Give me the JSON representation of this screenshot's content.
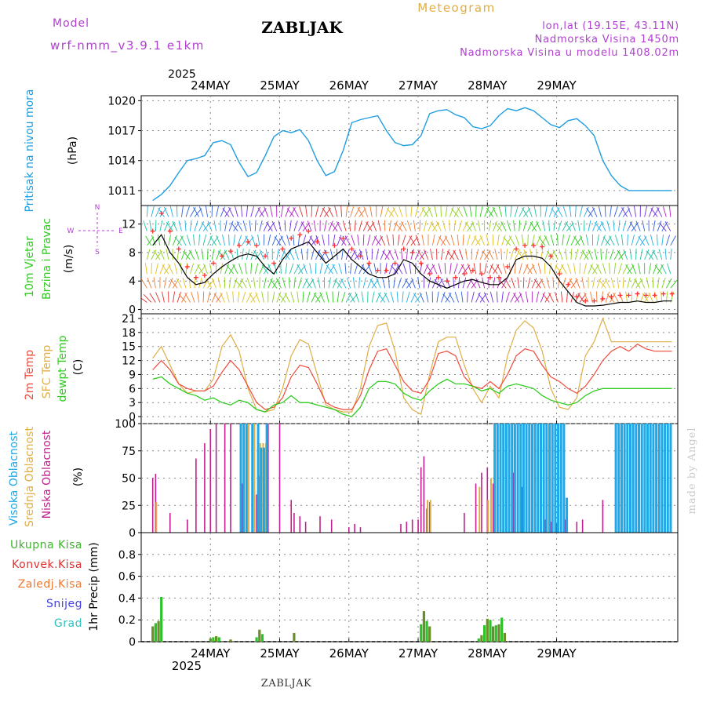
{
  "header": {
    "model_label": "Model",
    "model_name": "wrf-nmm_v3.9.1 e1km",
    "station": "ZABLJAK",
    "product": "Meteogram",
    "coords": "lon,lat (19.15E, 43.11N)",
    "elevation": "Nadmorska Visina 1450m",
    "model_elevation": "Nadmorska Visina u modelu 1408.02m",
    "footer_station": "ZABLJAK",
    "credit": "made by Angel"
  },
  "colors": {
    "pressure": "#1e9ee0",
    "wind_speed": "#000000",
    "gust": "#ff3030",
    "temp2m": "#f04a3a",
    "sfc_temp": "#dfae47",
    "dewpoint": "#2ecc1e",
    "cloud_high": "#1ea8e8",
    "cloud_mid": "#dfae47",
    "cloud_low": "#c0208e",
    "precip_total": "#3cb52a",
    "precip_conv": "#e03030",
    "precip_frozen": "#f07830",
    "snow": "#4040e0",
    "hail": "#30c0c0",
    "grid": "#888888",
    "model_text": "#b040d0"
  },
  "chart_data": [
    {
      "type": "line",
      "panel": "pressure",
      "ylabel_left": "Pritisak na nivou mora",
      "ylabel_unit": "(hPa)",
      "ylim": [
        1009.5,
        1020.5
      ],
      "yticks": [
        1011,
        1014,
        1017,
        1020
      ],
      "x_day_ticks": [
        "24MAY",
        "25MAY",
        "26MAY",
        "27MAY",
        "28MAY",
        "29MAY"
      ],
      "year_label": "2025",
      "x_hours": [
        0,
        3,
        6,
        9,
        12,
        15,
        18,
        21,
        24,
        27,
        30,
        33,
        36,
        39,
        42,
        45,
        48,
        51,
        54,
        57,
        60,
        63,
        66,
        69,
        72,
        75,
        78,
        81,
        84,
        87,
        90,
        93,
        96,
        99,
        102,
        105,
        108,
        111,
        114,
        117,
        120,
        123,
        126,
        129,
        132,
        135,
        138,
        141,
        144,
        147,
        150,
        153,
        156,
        159,
        162,
        165,
        168,
        171,
        174,
        177,
        180
      ],
      "series": [
        {
          "values": [
            1010.0,
            1010.6,
            1011.5,
            1012.8,
            1014.0,
            1014.2,
            1014.5,
            1015.8,
            1016.0,
            1015.6,
            1013.8,
            1012.4,
            1012.8,
            1014.5,
            1016.4,
            1017.0,
            1016.8,
            1017.1,
            1016.0,
            1014.0,
            1012.5,
            1012.9,
            1015.0,
            1017.8,
            1018.1,
            1018.3,
            1018.5,
            1017.0,
            1015.8,
            1015.5,
            1015.6,
            1016.5,
            1018.7,
            1019.0,
            1019.1,
            1018.6,
            1018.3,
            1017.4,
            1017.2,
            1017.5,
            1018.5,
            1019.2,
            1019.0,
            1019.3,
            1019.0,
            1018.3,
            1017.6,
            1017.3,
            1018.0,
            1018.2,
            1017.5,
            1016.5,
            1014.0,
            1012.5,
            1011.5,
            1011.0,
            1011.0,
            1011.0,
            1011.0,
            1011.0,
            1011.0
          ]
        }
      ]
    },
    {
      "type": "line",
      "panel": "wind",
      "ylabel_left": "10m Vjetar",
      "ylabel_left2": "Brzina i Pravac",
      "ylabel_unit": "(m/s)",
      "compass": {
        "n": "N",
        "e": "E",
        "w": "W",
        "s": "S"
      },
      "ylim": [
        -0.6,
        14.6
      ],
      "yticks": [
        0,
        4,
        8,
        12
      ],
      "series": [
        {
          "name": "wind_speed",
          "values": [
            9.0,
            10.5,
            8.0,
            6.5,
            4.5,
            3.5,
            3.8,
            5.0,
            6.0,
            6.8,
            7.5,
            7.8,
            7.5,
            6.0,
            5.0,
            7.0,
            8.5,
            9.0,
            9.5,
            8.0,
            6.5,
            7.5,
            8.5,
            7.0,
            6.0,
            5.0,
            4.5,
            4.5,
            5.0,
            7.0,
            6.5,
            5.0,
            4.0,
            3.5,
            3.0,
            3.5,
            4.0,
            4.2,
            3.8,
            3.5,
            3.5,
            4.5,
            7.0,
            7.5,
            7.5,
            7.2,
            6.0,
            4.0,
            2.5,
            1.0,
            0.5,
            0.5,
            0.6,
            0.8,
            1.0,
            1.0,
            1.2,
            1.0,
            1.0,
            1.2,
            1.2
          ]
        },
        {
          "name": "gusts",
          "values": [
            11.0,
            13.5,
            11.0,
            8.5,
            6.0,
            4.5,
            4.8,
            6.5,
            7.5,
            8.2,
            9.0,
            9.5,
            9.0,
            7.5,
            6.5,
            8.5,
            10.0,
            10.5,
            11.0,
            9.5,
            8.0,
            9.0,
            10.0,
            8.5,
            7.5,
            6.5,
            5.5,
            5.5,
            6.5,
            8.5,
            8.0,
            6.5,
            5.0,
            4.5,
            4.0,
            4.5,
            5.0,
            5.5,
            5.0,
            4.5,
            4.5,
            6.0,
            8.5,
            9.0,
            9.0,
            8.8,
            7.5,
            5.0,
            3.5,
            1.8,
            1.2,
            1.2,
            1.5,
            1.8,
            2.0,
            2.0,
            2.2,
            2.0,
            2.0,
            2.2,
            2.2
          ]
        }
      ]
    },
    {
      "type": "line",
      "panel": "temperature",
      "ylabel_left": "2m Temp",
      "ylabel_left2": "SFC Temp",
      "ylabel_left3": "dewpt Temp",
      "ylabel_unit": "(C)",
      "ylim": [
        -1.5,
        22
      ],
      "yticks": [
        0,
        3,
        6,
        9,
        12,
        15,
        18,
        21
      ],
      "series": [
        {
          "name": "2m Temp",
          "values": [
            10.0,
            12.0,
            10.0,
            7.0,
            6.0,
            5.5,
            5.5,
            6.5,
            9.5,
            12.0,
            10.0,
            6.5,
            3.0,
            1.5,
            2.0,
            4.0,
            8.5,
            11.0,
            10.5,
            7.0,
            3.0,
            2.0,
            1.5,
            1.5,
            4.5,
            10.0,
            14.0,
            14.5,
            11.0,
            7.5,
            5.5,
            5.0,
            8.0,
            13.5,
            14.0,
            13.0,
            8.5,
            6.5,
            6.0,
            7.5,
            6.0,
            9.0,
            13.0,
            14.5,
            14.0,
            11.0,
            8.5,
            7.5,
            6.0,
            5.0,
            6.5,
            9.0,
            12.0,
            14.0,
            15.0,
            14.0,
            15.5,
            14.5,
            14.0,
            14.0,
            14.0
          ]
        },
        {
          "name": "SFC Temp",
          "values": [
            12.5,
            15.0,
            11.0,
            7.0,
            5.0,
            5.5,
            5.5,
            8.0,
            15.0,
            17.5,
            14.0,
            6.0,
            1.5,
            1.0,
            1.5,
            6.0,
            13.0,
            16.5,
            15.5,
            9.0,
            2.5,
            1.5,
            1.0,
            1.0,
            6.0,
            15.0,
            19.5,
            20.0,
            14.0,
            4.0,
            1.5,
            0.5,
            9.0,
            16.0,
            17.0,
            17.0,
            11.0,
            6.0,
            3.0,
            6.5,
            4.0,
            13.0,
            18.5,
            20.5,
            19.0,
            14.0,
            6.0,
            2.0,
            1.5,
            4.0,
            13.0,
            16.0,
            21.0,
            16.0,
            16.0,
            16.0,
            16.0,
            16.0,
            16.0,
            16.0,
            16.0
          ]
        },
        {
          "name": "dewpt Temp",
          "values": [
            8.0,
            8.5,
            7.0,
            6.0,
            5.0,
            4.5,
            3.5,
            4.0,
            3.0,
            2.5,
            3.5,
            3.0,
            1.5,
            1.0,
            2.5,
            3.0,
            4.5,
            3.0,
            3.0,
            2.5,
            2.0,
            1.5,
            0.5,
            0.0,
            2.0,
            6.0,
            7.5,
            7.5,
            7.0,
            5.0,
            4.0,
            3.5,
            5.5,
            7.0,
            8.0,
            7.0,
            7.0,
            6.5,
            5.5,
            6.0,
            5.0,
            6.5,
            7.0,
            6.5,
            6.0,
            4.5,
            3.5,
            3.0,
            2.5,
            3.0,
            4.5,
            5.5,
            6.0,
            6.0,
            6.0,
            6.0,
            6.0,
            6.0,
            6.0,
            6.0,
            6.0
          ]
        }
      ]
    },
    {
      "type": "bar",
      "panel": "clouds",
      "ylabel_left": "Visoka Oblacnost",
      "ylabel_left2": "Srednja Oblacnost",
      "ylabel_left3": "Niska Oblacnost",
      "ylabel_unit": "(%)",
      "ylim": [
        0,
        100
      ],
      "yticks": [
        0,
        25,
        50,
        75,
        100
      ],
      "series": [
        {
          "name": "Niska Oblacnost",
          "hours": [
            0,
            1,
            6,
            12,
            15,
            18,
            20,
            22,
            25,
            27,
            31,
            36,
            37,
            40,
            44,
            48,
            49,
            51,
            53,
            58,
            62,
            68,
            70,
            72,
            86,
            88,
            90,
            92,
            93,
            94,
            95,
            96,
            108,
            112,
            114,
            116,
            118,
            125,
            128,
            136,
            138,
            140,
            143,
            147,
            149,
            156
          ],
          "values": [
            50,
            54,
            18,
            12,
            68,
            82,
            95,
            100,
            100,
            100,
            45,
            35,
            52,
            100,
            100,
            30,
            18,
            15,
            10,
            15,
            12,
            5,
            8,
            5,
            8,
            10,
            12,
            12,
            60,
            70,
            22,
            28,
            18,
            45,
            55,
            60,
            45,
            55,
            42,
            12,
            10,
            8,
            12,
            10,
            12,
            30
          ]
        },
        {
          "name": "Srednja Oblacnost",
          "hours": [
            1,
            33,
            35,
            37,
            38,
            39,
            95,
            96,
            113,
            116,
            117
          ],
          "values": [
            28,
            100,
            100,
            82,
            82,
            82,
            30,
            30,
            42,
            30,
            50
          ]
        },
        {
          "name": "Visoka Oblacnost",
          "hours": [
            30,
            31,
            32,
            34,
            36,
            37,
            38,
            39,
            118,
            119,
            120,
            121,
            122,
            123,
            124,
            125,
            126,
            127,
            128,
            129,
            130,
            131,
            132,
            133,
            134,
            135,
            136,
            137,
            138,
            139,
            140,
            141,
            142,
            143,
            160,
            161,
            162,
            163,
            164,
            165,
            166,
            167,
            168,
            169,
            170,
            171,
            172,
            173,
            174,
            175,
            176,
            177,
            178,
            179
          ],
          "values": [
            100,
            100,
            100,
            100,
            100,
            78,
            78,
            100,
            100,
            100,
            100,
            100,
            100,
            100,
            100,
            100,
            100,
            100,
            100,
            100,
            100,
            100,
            100,
            100,
            100,
            100,
            100,
            100,
            100,
            100,
            100,
            100,
            100,
            32,
            100,
            100,
            100,
            100,
            100,
            100,
            100,
            100,
            100,
            100,
            100,
            100,
            100,
            100,
            100,
            100,
            100,
            100,
            100,
            100
          ]
        }
      ]
    },
    {
      "type": "bar",
      "panel": "precip",
      "legend": [
        "Ukupna Kisa",
        "Konvek.Kisa",
        "Zaledj.Kisa",
        "Snijeg",
        "Grad"
      ],
      "ylabel_unit": "1hr Precip (mm)",
      "ylim": [
        0,
        1.0
      ],
      "yticks": [
        0,
        0.2,
        0.4,
        0.6,
        0.8
      ],
      "series": [
        {
          "name": "Ukupna Kisa",
          "hours": [
            0,
            1,
            2,
            3,
            20,
            21,
            22,
            23,
            27,
            36,
            37,
            38,
            49,
            93,
            94,
            95,
            96,
            113,
            114,
            115,
            116,
            117,
            118,
            119,
            120,
            121,
            122
          ],
          "values": [
            0.14,
            0.17,
            0.19,
            0.41,
            0.03,
            0.04,
            0.05,
            0.04,
            0.02,
            0.04,
            0.11,
            0.07,
            0.08,
            0.16,
            0.28,
            0.19,
            0.14,
            0.03,
            0.06,
            0.15,
            0.21,
            0.2,
            0.14,
            0.15,
            0.16,
            0.22,
            0.08
          ]
        }
      ]
    }
  ]
}
